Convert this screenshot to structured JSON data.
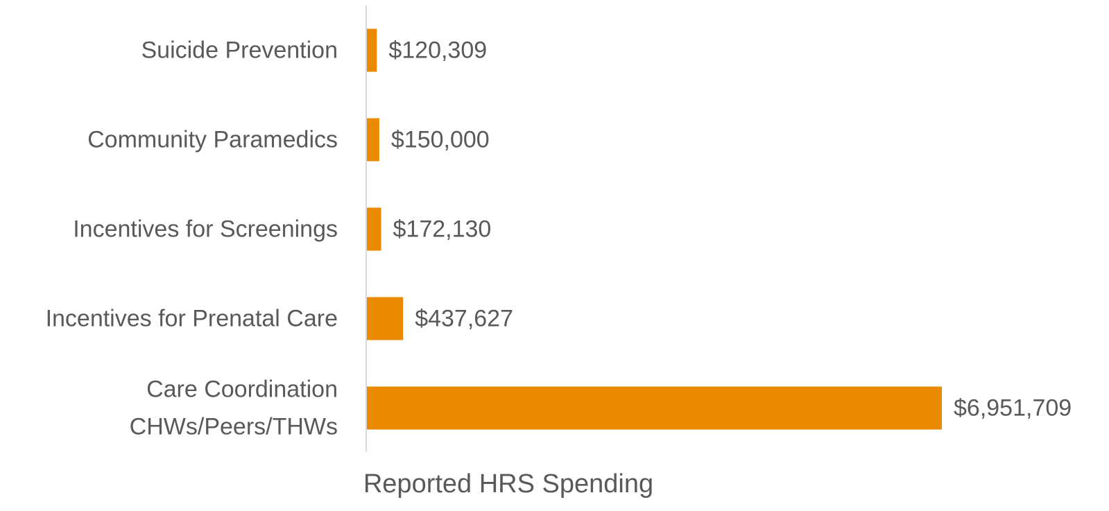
{
  "chart_data": {
    "type": "barh",
    "categories": [
      "Suicide Prevention",
      "Community Paramedics",
      "Incentives for Screenings",
      "Incentives for Prenatal Care",
      "Care Coordination\nCHWs/Peers/THWs"
    ],
    "values": [
      120309,
      150000,
      172130,
      437627,
      6951709
    ],
    "value_labels": [
      "$120,309",
      "$150,000",
      "$172,130",
      "$437,627",
      "$6,951,709"
    ],
    "color": "#EA8A00",
    "xlabel": "Reported HRS Spending"
  }
}
